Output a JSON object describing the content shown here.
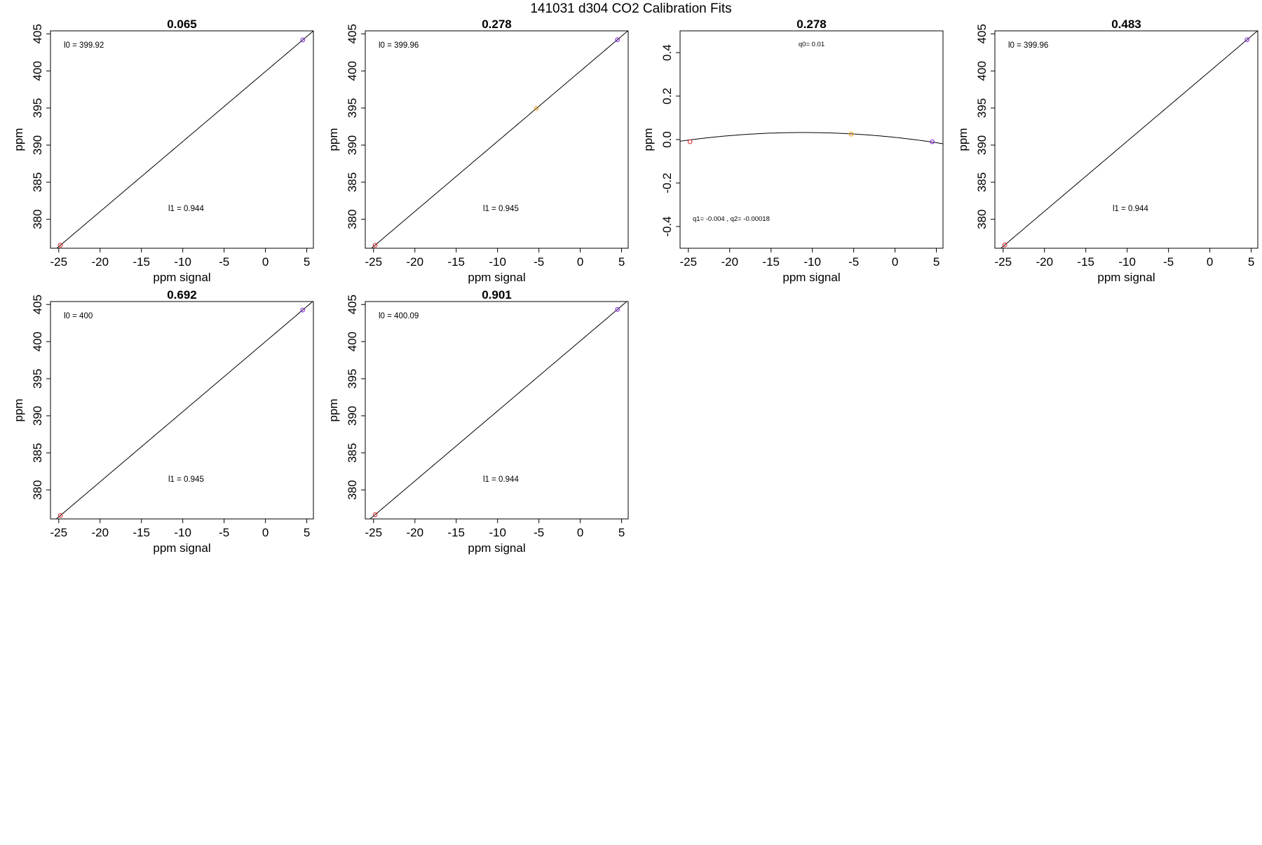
{
  "figure_title": "141031   d304   CO2 Calibration Fits",
  "colors": {
    "low_point": "#e03030",
    "mid_point": "#f0a020",
    "high_point": "#8a2be2",
    "fit_line": "#000000"
  },
  "chart_data": [
    {
      "type": "scatter",
      "title": "0.065",
      "xlabel": "ppm signal",
      "ylabel": "ppm",
      "xlim": [
        -26,
        5.8
      ],
      "ylim": [
        376.1,
        405.4
      ],
      "xticks": [
        -25,
        -20,
        -15,
        -10,
        -5,
        0,
        5
      ],
      "yticks": [
        380,
        385,
        390,
        395,
        400,
        405
      ],
      "fit": {
        "kind": "linear",
        "intercept": 399.92,
        "slope": 0.944
      },
      "points": [
        {
          "x": -24.8,
          "y": 376.51,
          "color": "low_point"
        },
        {
          "x": 4.5,
          "y": 404.17,
          "color": "high_point"
        }
      ],
      "annotations": {
        "l0": "l0 =  399.92",
        "l1": "l1 =  0.944"
      }
    },
    {
      "type": "scatter",
      "title": "0.278",
      "xlabel": "ppm signal",
      "ylabel": "ppm",
      "xlim": [
        -26,
        5.8
      ],
      "ylim": [
        376.1,
        405.4
      ],
      "xticks": [
        -25,
        -20,
        -15,
        -10,
        -5,
        0,
        5
      ],
      "yticks": [
        380,
        385,
        390,
        395,
        400,
        405
      ],
      "fit": {
        "kind": "linear",
        "intercept": 399.96,
        "slope": 0.945
      },
      "points": [
        {
          "x": -24.8,
          "y": 376.52,
          "color": "low_point"
        },
        {
          "x": -5.3,
          "y": 394.95,
          "color": "mid_point"
        },
        {
          "x": 4.5,
          "y": 404.21,
          "color": "high_point"
        }
      ],
      "annotations": {
        "l0": "l0 =  399.96",
        "l1": "l1 =  0.945"
      }
    },
    {
      "type": "scatter",
      "title": "0.278",
      "xlabel": "ppm signal",
      "ylabel": "ppm",
      "xlim": [
        -26,
        5.8
      ],
      "ylim": [
        -0.5,
        0.5
      ],
      "xticks": [
        -25,
        -20,
        -15,
        -10,
        -5,
        0,
        5
      ],
      "yticks": [
        -0.4,
        -0.2,
        0.0,
        0.2,
        0.4
      ],
      "fit": {
        "kind": "quadratic",
        "q0": 0.01,
        "q1": -0.004,
        "q2": -0.00018
      },
      "points": [
        {
          "x": -24.8,
          "y": -0.01,
          "color": "low_point"
        },
        {
          "x": -5.3,
          "y": 0.025,
          "color": "mid_point"
        },
        {
          "x": 4.5,
          "y": -0.01,
          "color": "high_point"
        }
      ],
      "annotations": {
        "q0": "q0= 0.01",
        "q12": "q1= -0.004 , q2= -0.00018"
      }
    },
    {
      "type": "scatter",
      "title": "0.483",
      "xlabel": "ppm signal",
      "ylabel": "ppm",
      "xlim": [
        -26,
        5.8
      ],
      "ylim": [
        376.1,
        405.4
      ],
      "xticks": [
        -25,
        -20,
        -15,
        -10,
        -5,
        0,
        5
      ],
      "yticks": [
        380,
        385,
        390,
        395,
        400,
        405
      ],
      "fit": {
        "kind": "linear",
        "intercept": 399.96,
        "slope": 0.944
      },
      "points": [
        {
          "x": -24.8,
          "y": 376.55,
          "color": "low_point"
        },
        {
          "x": 4.5,
          "y": 404.21,
          "color": "high_point"
        }
      ],
      "annotations": {
        "l0": "l0 =  399.96",
        "l1": "l1 =  0.944"
      }
    },
    {
      "type": "scatter",
      "title": "0.692",
      "xlabel": "ppm signal",
      "ylabel": "ppm",
      "xlim": [
        -26,
        5.8
      ],
      "ylim": [
        376.1,
        405.4
      ],
      "xticks": [
        -25,
        -20,
        -15,
        -10,
        -5,
        0,
        5
      ],
      "yticks": [
        380,
        385,
        390,
        395,
        400,
        405
      ],
      "fit": {
        "kind": "linear",
        "intercept": 400,
        "slope": 0.945
      },
      "points": [
        {
          "x": -24.8,
          "y": 376.56,
          "color": "low_point"
        },
        {
          "x": 4.5,
          "y": 404.25,
          "color": "high_point"
        }
      ],
      "annotations": {
        "l0": "l0 =  400",
        "l1": "l1 =  0.945"
      }
    },
    {
      "type": "scatter",
      "title": "0.901",
      "xlabel": "ppm signal",
      "ylabel": "ppm",
      "xlim": [
        -26,
        5.8
      ],
      "ylim": [
        376.1,
        405.4
      ],
      "xticks": [
        -25,
        -20,
        -15,
        -10,
        -5,
        0,
        5
      ],
      "yticks": [
        380,
        385,
        390,
        395,
        400,
        405
      ],
      "fit": {
        "kind": "linear",
        "intercept": 400.09,
        "slope": 0.944
      },
      "points": [
        {
          "x": -24.8,
          "y": 376.68,
          "color": "low_point"
        },
        {
          "x": 4.5,
          "y": 404.34,
          "color": "high_point"
        }
      ],
      "annotations": {
        "l0": "l0 =  400.09",
        "l1": "l1 =  0.944"
      }
    }
  ]
}
